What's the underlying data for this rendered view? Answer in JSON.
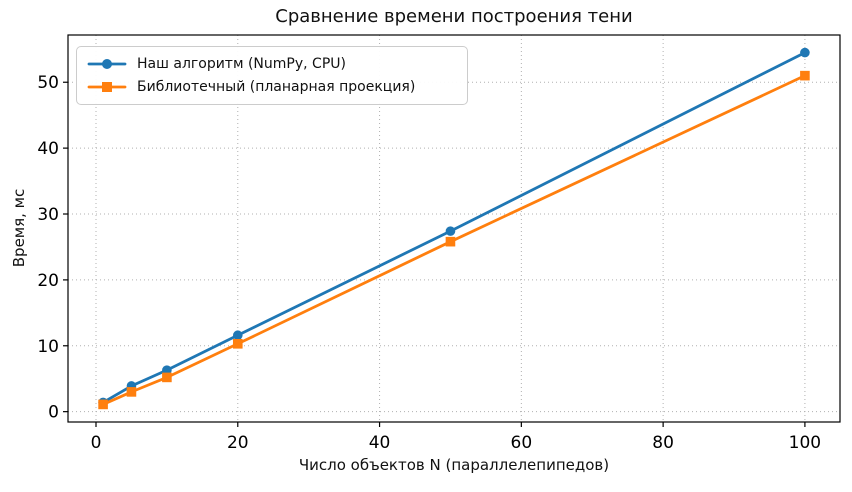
{
  "chart_data": {
    "type": "line",
    "title": "Сравнение времени построения тени",
    "xlabel": "Число объектов N (параллелепипедов)",
    "ylabel": "Время, мс",
    "x": [
      1,
      5,
      10,
      20,
      50,
      100
    ],
    "series": [
      {
        "name": "Наш алгоритм (NumPy, CPU)",
        "color": "#1f77b4",
        "marker": "circle",
        "values": [
          1.4,
          3.9,
          6.3,
          11.6,
          27.4,
          54.5
        ]
      },
      {
        "name": "Библиотечный (планарная проекция)",
        "color": "#ff7f0e",
        "marker": "square",
        "values": [
          1.1,
          3.0,
          5.2,
          10.3,
          25.8,
          51.0
        ]
      }
    ],
    "xlim": [
      -3.95,
      104.95
    ],
    "ylim": [
      -1.57,
      57.17
    ],
    "xticks": [
      0,
      20,
      40,
      60,
      80,
      100
    ],
    "yticks": [
      0,
      10,
      20,
      30,
      40,
      50
    ],
    "grid": true,
    "grid_style": "dotted",
    "grid_color": "#b0b0b0",
    "legend_position": "upper left",
    "axis_color": "#000000",
    "background": "#ffffff"
  }
}
